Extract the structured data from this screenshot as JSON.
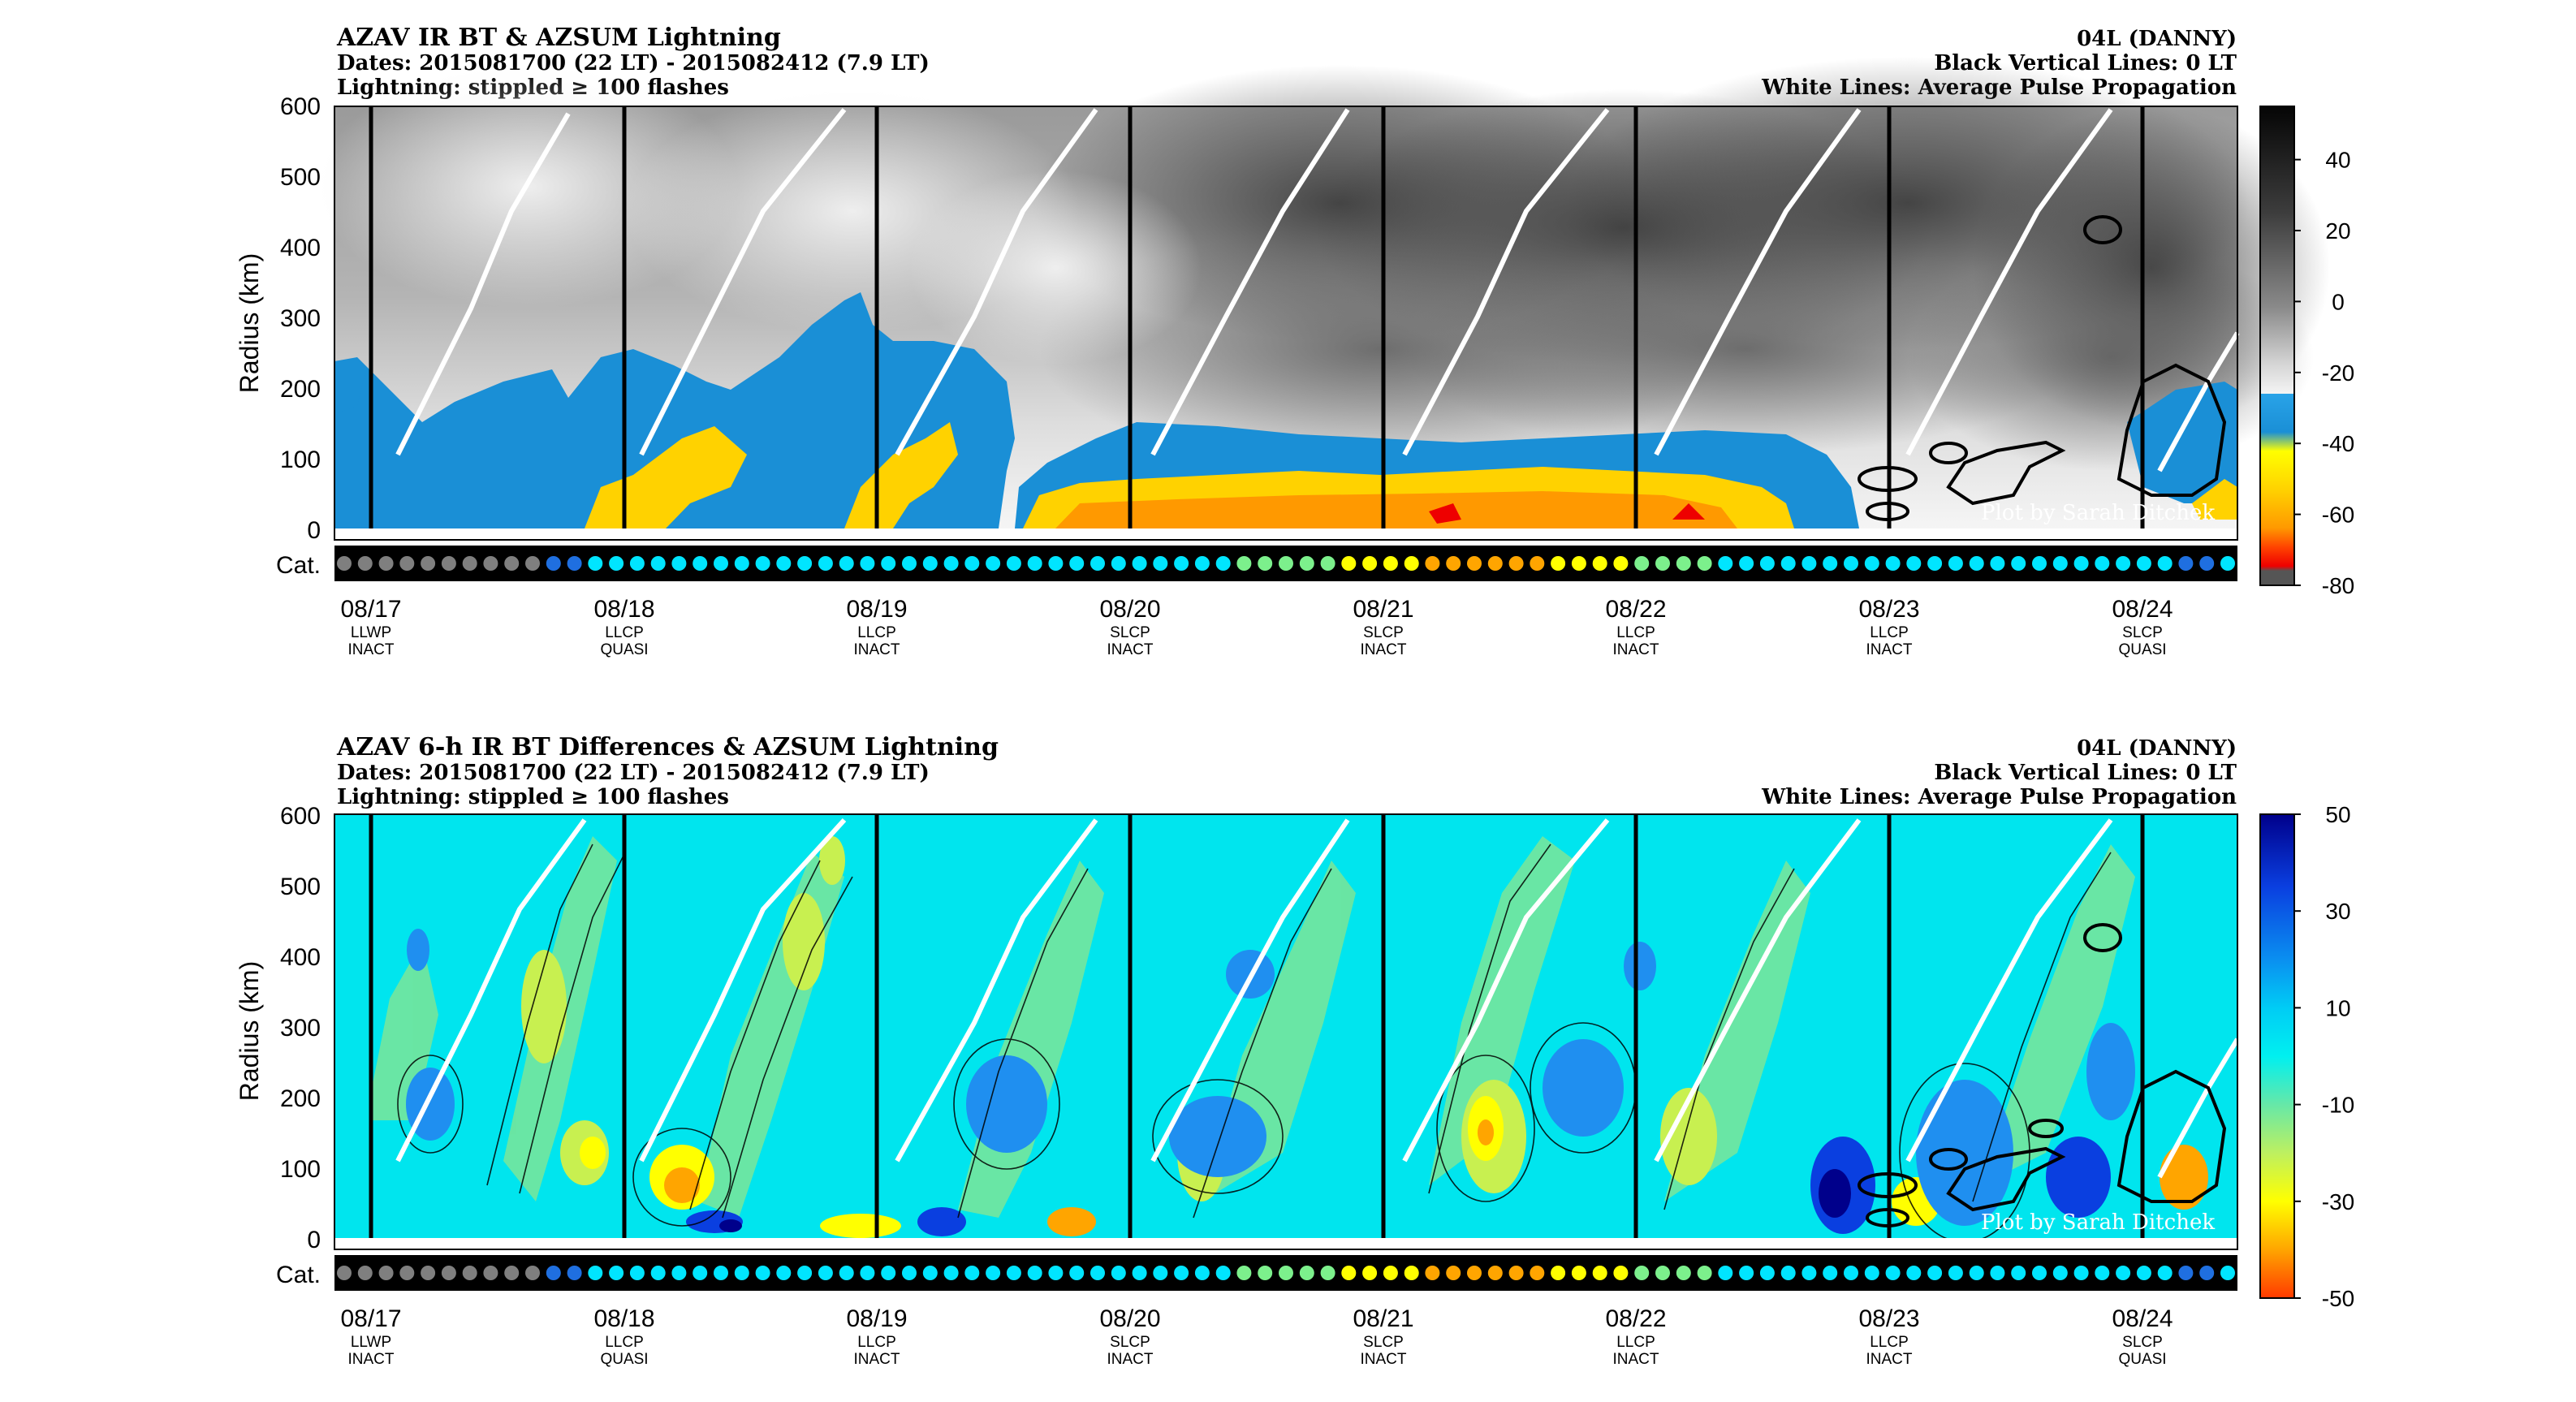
{
  "panels": [
    {
      "title": "AZAV IR BT & AZSUM Lightning",
      "dates": "Dates: 2015081700 (22 LT) - 2015082412 (7.9 LT)",
      "lightning": "Lightning: stippled ≥ 100 flashes",
      "storm": "04L (DANNY)",
      "black_lines": "Black Vertical Lines: 0 LT",
      "white_lines": "White Lines: Average Pulse Propagation",
      "ylabel": "Radius (km)",
      "cat_label": "Cat.",
      "credit": "Plot by Sarah Ditchek",
      "colorbar_ticks": [
        "40",
        "20",
        "0",
        "-20",
        "-40",
        "-60",
        "-80"
      ],
      "colorbar_range": [
        -80,
        55
      ],
      "colormap": "ir",
      "panel_index": 0
    },
    {
      "title": "AZAV 6-h IR BT Differences & AZSUM Lightning",
      "dates": "Dates: 2015081700 (22 LT) - 2015082412 (7.9 LT)",
      "lightning": "Lightning: stippled ≥ 100 flashes",
      "storm": "04L (DANNY)",
      "black_lines": "Black Vertical Lines: 0 LT",
      "white_lines": "White Lines: Average Pulse Propagation",
      "ylabel": "Radius (km)",
      "cat_label": "Cat.",
      "credit": "Plot by Sarah Ditchek",
      "colorbar_ticks": [
        "50",
        "30",
        "10",
        "-10",
        "-30",
        "-50"
      ],
      "colorbar_range": [
        -50,
        50
      ],
      "colormap": "diff",
      "panel_index": 1
    }
  ],
  "chart_data": [
    {
      "type": "heatmap",
      "title": "AZAV IR BT & AZSUM Lightning",
      "ylabel": "Radius (km)",
      "ylim": [
        0,
        600
      ],
      "yticks": [
        0,
        100,
        200,
        300,
        400,
        500,
        600
      ],
      "x_tick_labels": [
        "08/17",
        "08/18",
        "08/19",
        "08/20",
        "08/21",
        "08/22",
        "08/23",
        "08/24"
      ],
      "x_tick_sublabels": [
        [
          "LLWP",
          "INACT"
        ],
        [
          "LLCP",
          "QUASI"
        ],
        [
          "LLCP",
          "INACT"
        ],
        [
          "SLCP",
          "INACT"
        ],
        [
          "SLCP",
          "INACT"
        ],
        [
          "LLCP",
          "INACT"
        ],
        [
          "LLCP",
          "INACT"
        ],
        [
          "SLCP",
          "QUASI"
        ]
      ],
      "colorbar_label_values": [
        40,
        20,
        0,
        -20,
        -40,
        -60,
        -80
      ],
      "approx_ir_bt_inner_core_by_day": [
        {
          "day": "08/17",
          "r0_100": -25,
          "r100_200": -35,
          "r300_600": -5
        },
        {
          "day": "08/18",
          "r0_100": -52,
          "r100_200": -42,
          "r300_600": -10
        },
        {
          "day": "08/19",
          "r0_100": -48,
          "r100_200": -35,
          "r300_600": -12
        },
        {
          "day": "08/20",
          "r0_100": -55,
          "r100_200": -25,
          "r300_600": 10
        },
        {
          "day": "08/21",
          "r0_100": -60,
          "r100_200": -25,
          "r300_600": 15
        },
        {
          "day": "08/22",
          "r0_100": -62,
          "r100_200": -28,
          "r300_600": 18
        },
        {
          "day": "08/23",
          "r0_100": -30,
          "r100_200": -10,
          "r300_600": 20
        },
        {
          "day": "08/24",
          "r0_100": -35,
          "r100_200": -40,
          "r300_600": 25
        }
      ]
    },
    {
      "type": "heatmap",
      "title": "AZAV 6-h IR BT Differences & AZSUM Lightning",
      "ylabel": "Radius (km)",
      "ylim": [
        0,
        600
      ],
      "yticks": [
        0,
        100,
        200,
        300,
        400,
        500,
        600
      ],
      "x_tick_labels": [
        "08/17",
        "08/18",
        "08/19",
        "08/20",
        "08/21",
        "08/22",
        "08/23",
        "08/24"
      ],
      "x_tick_sublabels": [
        [
          "LLWP",
          "INACT"
        ],
        [
          "LLCP",
          "QUASI"
        ],
        [
          "LLCP",
          "INACT"
        ],
        [
          "SLCP",
          "INACT"
        ],
        [
          "SLCP",
          "INACT"
        ],
        [
          "LLCP",
          "INACT"
        ],
        [
          "LLCP",
          "INACT"
        ],
        [
          "SLCP",
          "QUASI"
        ]
      ],
      "colorbar_label_values": [
        50,
        30,
        10,
        -10,
        -30,
        -50
      ]
    }
  ],
  "category_colors": [
    "#7f7f7f",
    "#7f7f7f",
    "#7f7f7f",
    "#7f7f7f",
    "#7f7f7f",
    "#7f7f7f",
    "#7f7f7f",
    "#7f7f7f",
    "#7f7f7f",
    "#7f7f7f",
    "#1f6fe0",
    "#1f6fe0",
    "#00e5ff",
    "#00e5ff",
    "#00e5ff",
    "#00e5ff",
    "#00e5ff",
    "#00e5ff",
    "#00e5ff",
    "#00e5ff",
    "#00e5ff",
    "#00e5ff",
    "#00e5ff",
    "#00e5ff",
    "#00e5ff",
    "#00e5ff",
    "#00e5ff",
    "#00e5ff",
    "#00e5ff",
    "#00e5ff",
    "#00e5ff",
    "#00e5ff",
    "#00e5ff",
    "#00e5ff",
    "#00e5ff",
    "#00e5ff",
    "#00e5ff",
    "#00e5ff",
    "#00e5ff",
    "#00e5ff",
    "#00e5ff",
    "#00e5ff",
    "#00e5ff",
    "#7cf08c",
    "#7cf08c",
    "#7cf08c",
    "#7cf08c",
    "#7cf08c",
    "#ffff00",
    "#ffff00",
    "#ffff00",
    "#ffff00",
    "#ffa500",
    "#ffa500",
    "#ffa500",
    "#ffa500",
    "#ffa500",
    "#ffa500",
    "#ffff00",
    "#ffff00",
    "#ffff00",
    "#ffff00",
    "#7cf08c",
    "#7cf08c",
    "#7cf08c",
    "#7cf08c",
    "#00e5ff",
    "#00e5ff",
    "#00e5ff",
    "#00e5ff",
    "#00e5ff",
    "#00e5ff",
    "#00e5ff",
    "#00e5ff",
    "#00e5ff",
    "#00e5ff",
    "#00e5ff",
    "#00e5ff",
    "#00e5ff",
    "#00e5ff",
    "#00e5ff",
    "#00e5ff",
    "#00e5ff",
    "#00e5ff",
    "#00e5ff",
    "#00e5ff",
    "#00e5ff",
    "#00e5ff",
    "#1f6fe0",
    "#1f6fe0",
    "#00e5ff"
  ]
}
